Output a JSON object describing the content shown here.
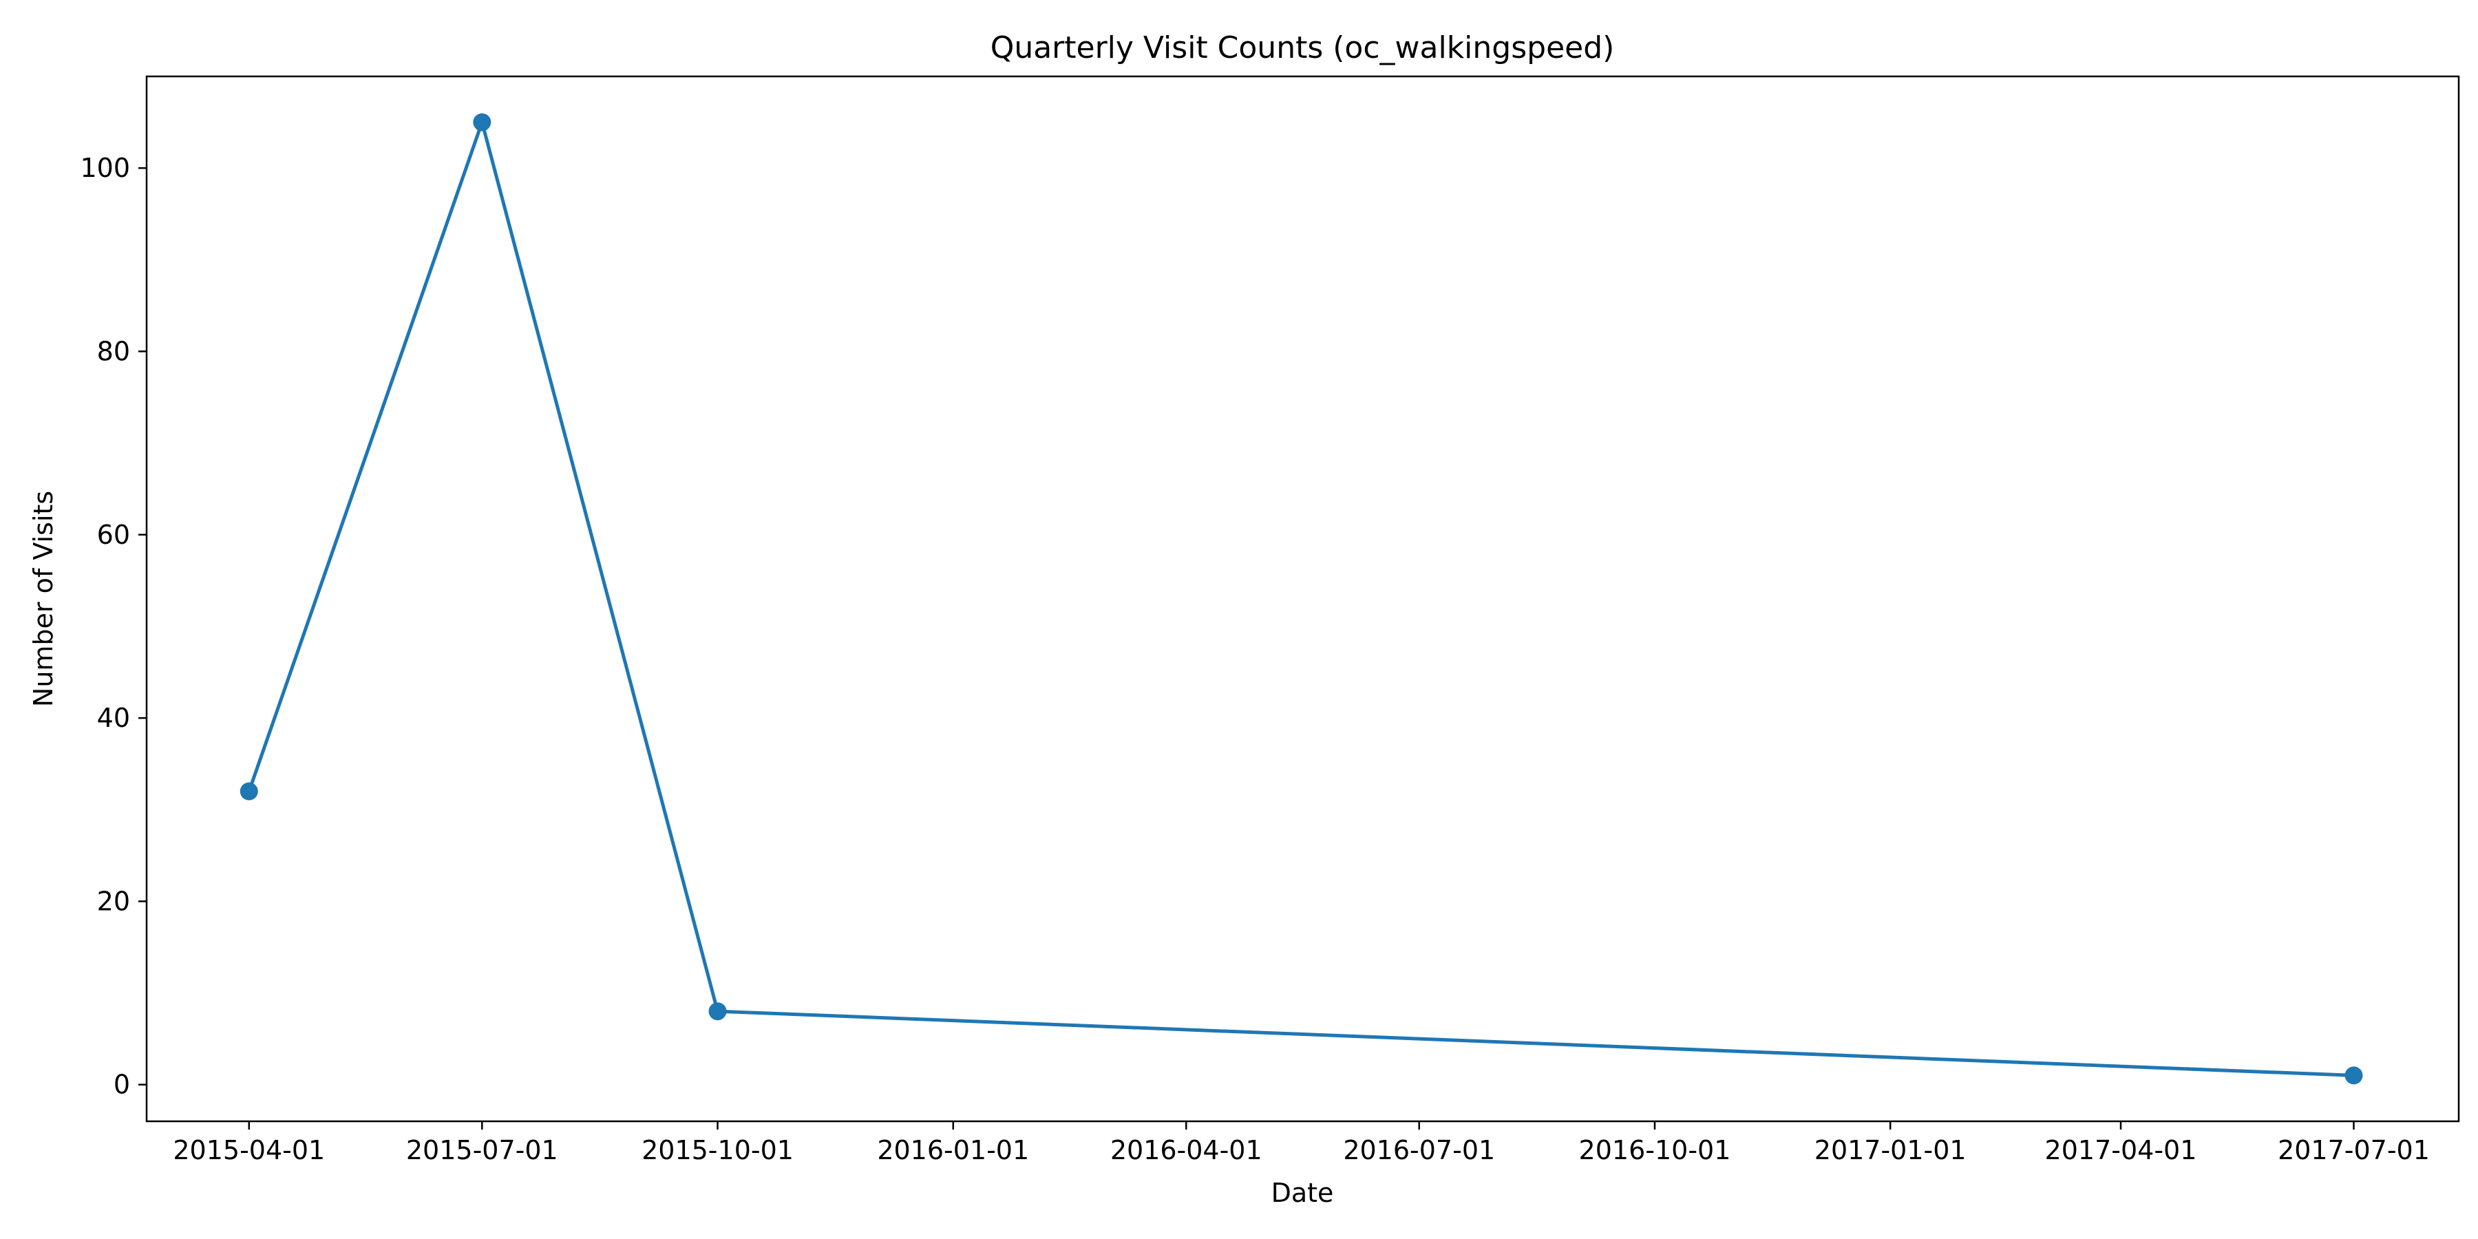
{
  "chart_data": {
    "type": "line",
    "title": "Quarterly Visit Counts (oc_walkingspeed)",
    "xlabel": "Date",
    "ylabel": "Number of Visits",
    "x_ticks": [
      "2015-04-01",
      "2015-07-01",
      "2015-10-01",
      "2016-01-01",
      "2016-04-01",
      "2016-07-01",
      "2016-10-01",
      "2017-01-01",
      "2017-04-01",
      "2017-07-01"
    ],
    "y_ticks": [
      0,
      20,
      40,
      60,
      80,
      100
    ],
    "ylim": [
      -4,
      110
    ],
    "xlim": [
      "2015-02-20",
      "2017-08-11"
    ],
    "grid": false,
    "series": [
      {
        "color": "#1f77b4",
        "marker": "circle",
        "points": [
          {
            "x": "2015-04-01",
            "y": 32
          },
          {
            "x": "2015-07-01",
            "y": 105
          },
          {
            "x": "2015-10-01",
            "y": 8
          },
          {
            "x": "2017-07-01",
            "y": 1
          }
        ]
      }
    ]
  }
}
